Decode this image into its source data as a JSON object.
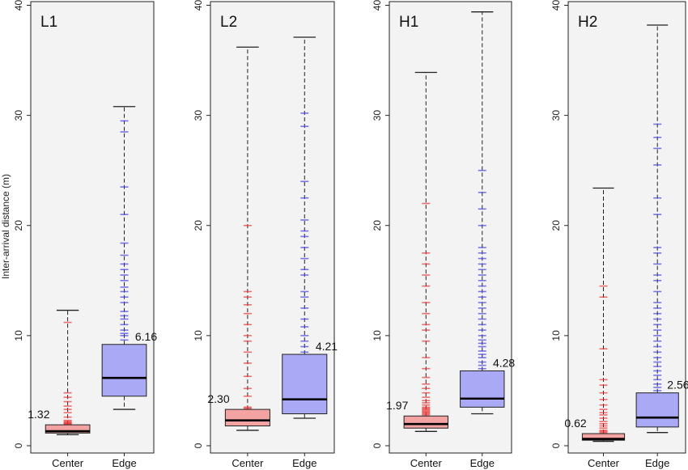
{
  "chart_data": {
    "type": "box",
    "ylabel": "Inter-arrival distance (m)",
    "ylim": [
      0,
      40
    ],
    "yticks": [
      0,
      10,
      20,
      30,
      40
    ],
    "categories": [
      "Center",
      "Edge"
    ],
    "colors": {
      "Center": "#f4a3a3",
      "Edge": "#a9a9f5",
      "center_outlier": "#ee3333",
      "edge_outlier": "#4040e0",
      "panel_bg": "#f3f3f3"
    },
    "panels": [
      {
        "name": "L1",
        "boxes": [
          {
            "category": "Center",
            "whisker_low": 1.0,
            "q1": 1.15,
            "median": 1.32,
            "q3": 1.9,
            "whisker_high": 12.3,
            "median_label": "1.32",
            "outliers": [
              1.95,
              2.0,
              2.05,
              2.1,
              2.2,
              2.3,
              2.6,
              3.0,
              3.3,
              3.6,
              4.0,
              4.4,
              4.8,
              11.2
            ]
          },
          {
            "category": "Edge",
            "whisker_low": 3.3,
            "q1": 4.5,
            "median": 6.16,
            "q3": 9.2,
            "whisker_high": 30.8,
            "median_label": "6.16",
            "outliers": [
              9.6,
              10.0,
              10.2,
              10.5,
              11.0,
              11.5,
              11.8,
              12.2,
              13.0,
              13.5,
              14.0,
              14.4,
              15.0,
              15.5,
              16.0,
              16.5,
              17.3,
              18.4,
              21.0,
              23.5,
              28.5,
              29.5
            ]
          }
        ]
      },
      {
        "name": "L2",
        "boxes": [
          {
            "category": "Center",
            "whisker_low": 1.4,
            "q1": 1.8,
            "median": 2.3,
            "q3": 3.3,
            "whisker_high": 36.2,
            "median_label": "2.30",
            "outliers": [
              3.4,
              3.5,
              4.5,
              5.2,
              6.3,
              7.5,
              8.5,
              9.5,
              10.0,
              11.0,
              12.0,
              12.8,
              13.5,
              14.0,
              20.0
            ]
          },
          {
            "category": "Edge",
            "whisker_low": 2.5,
            "q1": 2.9,
            "median": 4.21,
            "q3": 8.3,
            "whisker_high": 37.1,
            "median_label": "4.21",
            "outliers": [
              8.5,
              9.0,
              9.5,
              10.0,
              10.8,
              11.5,
              12.5,
              13.5,
              14.0,
              15.5,
              16.0,
              17.0,
              18.0,
              19.0,
              19.5,
              20.5,
              22.5,
              24.0,
              29.0,
              30.2
            ]
          }
        ]
      },
      {
        "name": "H1",
        "boxes": [
          {
            "category": "Center",
            "whisker_low": 1.3,
            "q1": 1.6,
            "median": 1.97,
            "q3": 2.7,
            "whisker_high": 33.9,
            "median_label": "1.97",
            "outliers": [
              2.8,
              2.9,
              3.0,
              3.1,
              3.2,
              3.3,
              3.4,
              3.5,
              3.7,
              3.9,
              4.1,
              4.4,
              4.8,
              5.2,
              5.6,
              6.2,
              7.0,
              8.0,
              9.5,
              10.5,
              11.0,
              12.0,
              13.0,
              14.5,
              15.5,
              16.5,
              17.5,
              22.0
            ]
          },
          {
            "category": "Edge",
            "whisker_low": 2.9,
            "q1": 3.5,
            "median": 4.28,
            "q3": 6.8,
            "whisker_high": 39.4,
            "median_label": "4.28",
            "outliers": [
              7.0,
              7.3,
              7.6,
              8.0,
              8.3,
              8.6,
              9.0,
              9.3,
              9.6,
              10.0,
              10.5,
              11.0,
              11.5,
              12.0,
              12.5,
              13.0,
              13.5,
              14.0,
              14.5,
              15.0,
              15.5,
              16.0,
              16.5,
              17.0,
              17.5,
              18.0,
              20.0,
              21.5,
              23.0,
              25.0
            ]
          }
        ]
      },
      {
        "name": "H2",
        "boxes": [
          {
            "category": "Center",
            "whisker_low": 0.4,
            "q1": 0.5,
            "median": 0.62,
            "q3": 1.1,
            "whisker_high": 23.4,
            "median_label": "0.62",
            "outliers": [
              1.2,
              1.3,
              1.4,
              1.6,
              1.8,
              2.0,
              2.2,
              2.5,
              2.8,
              3.0,
              3.3,
              3.7,
              4.2,
              4.8,
              5.5,
              6.0,
              8.8,
              13.5,
              14.5
            ]
          },
          {
            "category": "Edge",
            "whisker_low": 1.2,
            "q1": 1.7,
            "median": 2.56,
            "q3": 4.8,
            "whisker_high": 38.2,
            "median_label": "2.56",
            "outliers": [
              5.0,
              5.3,
              5.6,
              6.0,
              6.4,
              6.8,
              7.2,
              7.6,
              8.0,
              8.5,
              9.0,
              9.5,
              10.0,
              10.5,
              11.0,
              11.5,
              12.0,
              12.5,
              13.0,
              14.0,
              15.0,
              15.5,
              16.5,
              17.5,
              18.0,
              21.0,
              22.5,
              25.5,
              27.0,
              28.0,
              29.2
            ]
          }
        ]
      }
    ]
  }
}
